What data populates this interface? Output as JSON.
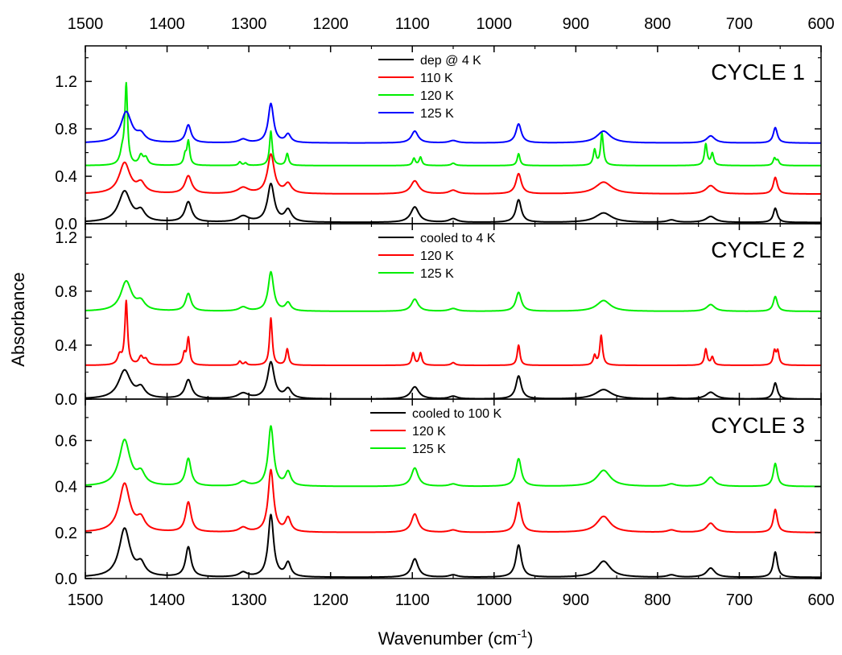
{
  "chart_data": {
    "type": "line",
    "xlabel": "Wavenumber (cm",
    "xlabel_sup": "-1",
    "xlabel_end": ")",
    "ylabel": "Absorbance",
    "x_reversed": true,
    "xlim": [
      1500,
      600
    ],
    "x_ticks": [
      1500,
      1400,
      1300,
      1200,
      1100,
      1000,
      900,
      800,
      700,
      600
    ],
    "x_tick_labels": [
      "1500",
      "1400",
      "1300",
      "1200",
      "1100",
      "1000",
      "900",
      "800",
      "700",
      "600"
    ],
    "panels": [
      {
        "title": "CYCLE 1",
        "ylim": [
          0,
          1.5
        ],
        "y_ticks": [
          0.0,
          0.4,
          0.8,
          1.2
        ],
        "y_tick_labels": [
          "0.0",
          "0.4",
          "0.8",
          "1.2"
        ],
        "legend_position": "top-center",
        "series": [
          {
            "name": "dep @ 4 K",
            "color": "#000000",
            "baseline": 0.01,
            "peaks": [
              [
                1452,
                0.26,
                9
              ],
              [
                1432,
                0.08,
                6
              ],
              [
                1374,
                0.17,
                5
              ],
              [
                1307,
                0.05,
                8
              ],
              [
                1273,
                0.32,
                5
              ],
              [
                1252,
                0.1,
                5
              ],
              [
                1097,
                0.13,
                6
              ],
              [
                1050,
                0.03,
                6
              ],
              [
                970,
                0.19,
                4
              ],
              [
                866,
                0.08,
                12
              ],
              [
                783,
                0.02,
                6
              ],
              [
                735,
                0.05,
                7
              ],
              [
                656,
                0.12,
                3
              ]
            ]
          },
          {
            "name": "110 K",
            "color": "#ff0000",
            "baseline": 0.25,
            "peaks": [
              [
                1452,
                0.26,
                8
              ],
              [
                1432,
                0.08,
                6
              ],
              [
                1374,
                0.15,
                5
              ],
              [
                1307,
                0.05,
                8
              ],
              [
                1273,
                0.33,
                5
              ],
              [
                1252,
                0.08,
                5
              ],
              [
                1097,
                0.11,
                6
              ],
              [
                1050,
                0.03,
                6
              ],
              [
                970,
                0.17,
                4
              ],
              [
                866,
                0.1,
                12
              ],
              [
                735,
                0.07,
                7
              ],
              [
                656,
                0.14,
                3
              ]
            ]
          },
          {
            "name": "120 K",
            "color": "#00ee00",
            "baseline": 0.49,
            "peaks": [
              [
                1450,
                0.67,
                2
              ],
              [
                1455,
                0.1,
                3
              ],
              [
                1432,
                0.08,
                3
              ],
              [
                1426,
                0.06,
                3
              ],
              [
                1374,
                0.2,
                2
              ],
              [
                1378,
                0.08,
                2
              ],
              [
                1311,
                0.03,
                2
              ],
              [
                1304,
                0.02,
                2
              ],
              [
                1273,
                0.29,
                2
              ],
              [
                1253,
                0.1,
                2
              ],
              [
                1098,
                0.06,
                2
              ],
              [
                1090,
                0.07,
                2
              ],
              [
                1050,
                0.02,
                3
              ],
              [
                970,
                0.1,
                2
              ],
              [
                877,
                0.13,
                2
              ],
              [
                868,
                0.27,
                2
              ],
              [
                741,
                0.18,
                2
              ],
              [
                733,
                0.1,
                2
              ],
              [
                657,
                0.06,
                2
              ],
              [
                653,
                0.04,
                2
              ]
            ]
          },
          {
            "name": "125 K",
            "color": "#0000ff",
            "baseline": 0.68,
            "peaks": [
              [
                1450,
                0.26,
                8
              ],
              [
                1432,
                0.06,
                6
              ],
              [
                1374,
                0.15,
                4
              ],
              [
                1307,
                0.03,
                6
              ],
              [
                1273,
                0.33,
                4
              ],
              [
                1252,
                0.07,
                4
              ],
              [
                1097,
                0.1,
                5
              ],
              [
                1050,
                0.02,
                6
              ],
              [
                970,
                0.16,
                4
              ],
              [
                866,
                0.1,
                10
              ],
              [
                735,
                0.06,
                6
              ],
              [
                656,
                0.13,
                3
              ]
            ]
          }
        ]
      },
      {
        "title": "CYCLE 2",
        "ylim": [
          0,
          1.3
        ],
        "y_ticks": [
          0.0,
          0.4,
          0.8,
          1.2
        ],
        "y_tick_labels": [
          "0.0",
          "0.4",
          "0.8",
          "1.2"
        ],
        "legend_position": "top-center",
        "series": [
          {
            "name": "cooled to 4 K",
            "color": "#000000",
            "baseline": 0.0,
            "peaks": [
              [
                1452,
                0.21,
                9
              ],
              [
                1432,
                0.07,
                6
              ],
              [
                1374,
                0.14,
                5
              ],
              [
                1307,
                0.04,
                8
              ],
              [
                1273,
                0.27,
                5
              ],
              [
                1252,
                0.07,
                5
              ],
              [
                1097,
                0.09,
                6
              ],
              [
                1050,
                0.02,
                6
              ],
              [
                970,
                0.17,
                4
              ],
              [
                866,
                0.07,
                12
              ],
              [
                783,
                0.01,
                6
              ],
              [
                735,
                0.05,
                7
              ],
              [
                656,
                0.12,
                3
              ]
            ]
          },
          {
            "name": "120 K",
            "color": "#ff0000",
            "baseline": 0.25,
            "peaks": [
              [
                1450,
                0.47,
                2
              ],
              [
                1458,
                0.07,
                3
              ],
              [
                1432,
                0.06,
                3
              ],
              [
                1426,
                0.04,
                3
              ],
              [
                1374,
                0.2,
                2
              ],
              [
                1379,
                0.08,
                2
              ],
              [
                1311,
                0.03,
                2
              ],
              [
                1304,
                0.02,
                2
              ],
              [
                1273,
                0.35,
                2
              ],
              [
                1253,
                0.12,
                2
              ],
              [
                1099,
                0.09,
                2
              ],
              [
                1090,
                0.09,
                2
              ],
              [
                1050,
                0.02,
                3
              ],
              [
                970,
                0.15,
                2
              ],
              [
                877,
                0.07,
                2
              ],
              [
                869,
                0.22,
                2
              ],
              [
                741,
                0.12,
                2
              ],
              [
                733,
                0.06,
                2
              ],
              [
                657,
                0.1,
                2
              ],
              [
                653,
                0.1,
                2
              ]
            ]
          },
          {
            "name": "125 K",
            "color": "#00ee00",
            "baseline": 0.65,
            "peaks": [
              [
                1450,
                0.22,
                8
              ],
              [
                1432,
                0.06,
                6
              ],
              [
                1374,
                0.13,
                4
              ],
              [
                1307,
                0.03,
                6
              ],
              [
                1273,
                0.29,
                4
              ],
              [
                1252,
                0.06,
                4
              ],
              [
                1097,
                0.09,
                5
              ],
              [
                1050,
                0.02,
                6
              ],
              [
                970,
                0.14,
                4
              ],
              [
                866,
                0.08,
                10
              ],
              [
                735,
                0.05,
                6
              ],
              [
                656,
                0.11,
                3
              ]
            ]
          }
        ]
      },
      {
        "title": "CYCLE 3",
        "ylim": [
          0,
          0.78
        ],
        "y_ticks": [
          0.0,
          0.2,
          0.4,
          0.6
        ],
        "y_tick_labels": [
          "0.0",
          "0.2",
          "0.4",
          "0.6"
        ],
        "legend_position": "top-center",
        "series": [
          {
            "name": "cooled to 100 K",
            "color": "#000000",
            "baseline": 0.005,
            "peaks": [
              [
                1452,
                0.21,
                8
              ],
              [
                1432,
                0.05,
                6
              ],
              [
                1374,
                0.13,
                4
              ],
              [
                1307,
                0.02,
                6
              ],
              [
                1273,
                0.27,
                4
              ],
              [
                1252,
                0.06,
                4
              ],
              [
                1097,
                0.08,
                5
              ],
              [
                1050,
                0.01,
                6
              ],
              [
                970,
                0.14,
                4
              ],
              [
                866,
                0.07,
                10
              ],
              [
                783,
                0.01,
                6
              ],
              [
                735,
                0.04,
                6
              ],
              [
                656,
                0.11,
                3
              ]
            ]
          },
          {
            "name": "120 K",
            "color": "#ff0000",
            "baseline": 0.2,
            "peaks": [
              [
                1452,
                0.21,
                8
              ],
              [
                1432,
                0.05,
                6
              ],
              [
                1374,
                0.13,
                4
              ],
              [
                1307,
                0.02,
                6
              ],
              [
                1273,
                0.27,
                4
              ],
              [
                1252,
                0.06,
                4
              ],
              [
                1097,
                0.08,
                5
              ],
              [
                1050,
                0.01,
                6
              ],
              [
                970,
                0.13,
                4
              ],
              [
                866,
                0.07,
                10
              ],
              [
                783,
                0.01,
                6
              ],
              [
                735,
                0.04,
                6
              ],
              [
                656,
                0.1,
                3
              ]
            ]
          },
          {
            "name": "125 K",
            "color": "#00ee00",
            "baseline": 0.4,
            "peaks": [
              [
                1452,
                0.2,
                8
              ],
              [
                1432,
                0.05,
                6
              ],
              [
                1374,
                0.12,
                4
              ],
              [
                1307,
                0.02,
                6
              ],
              [
                1273,
                0.26,
                4
              ],
              [
                1252,
                0.06,
                4
              ],
              [
                1097,
                0.08,
                5
              ],
              [
                1050,
                0.01,
                6
              ],
              [
                970,
                0.12,
                4
              ],
              [
                866,
                0.07,
                10
              ],
              [
                783,
                0.01,
                6
              ],
              [
                735,
                0.04,
                6
              ],
              [
                656,
                0.1,
                3
              ]
            ]
          }
        ]
      }
    ]
  }
}
